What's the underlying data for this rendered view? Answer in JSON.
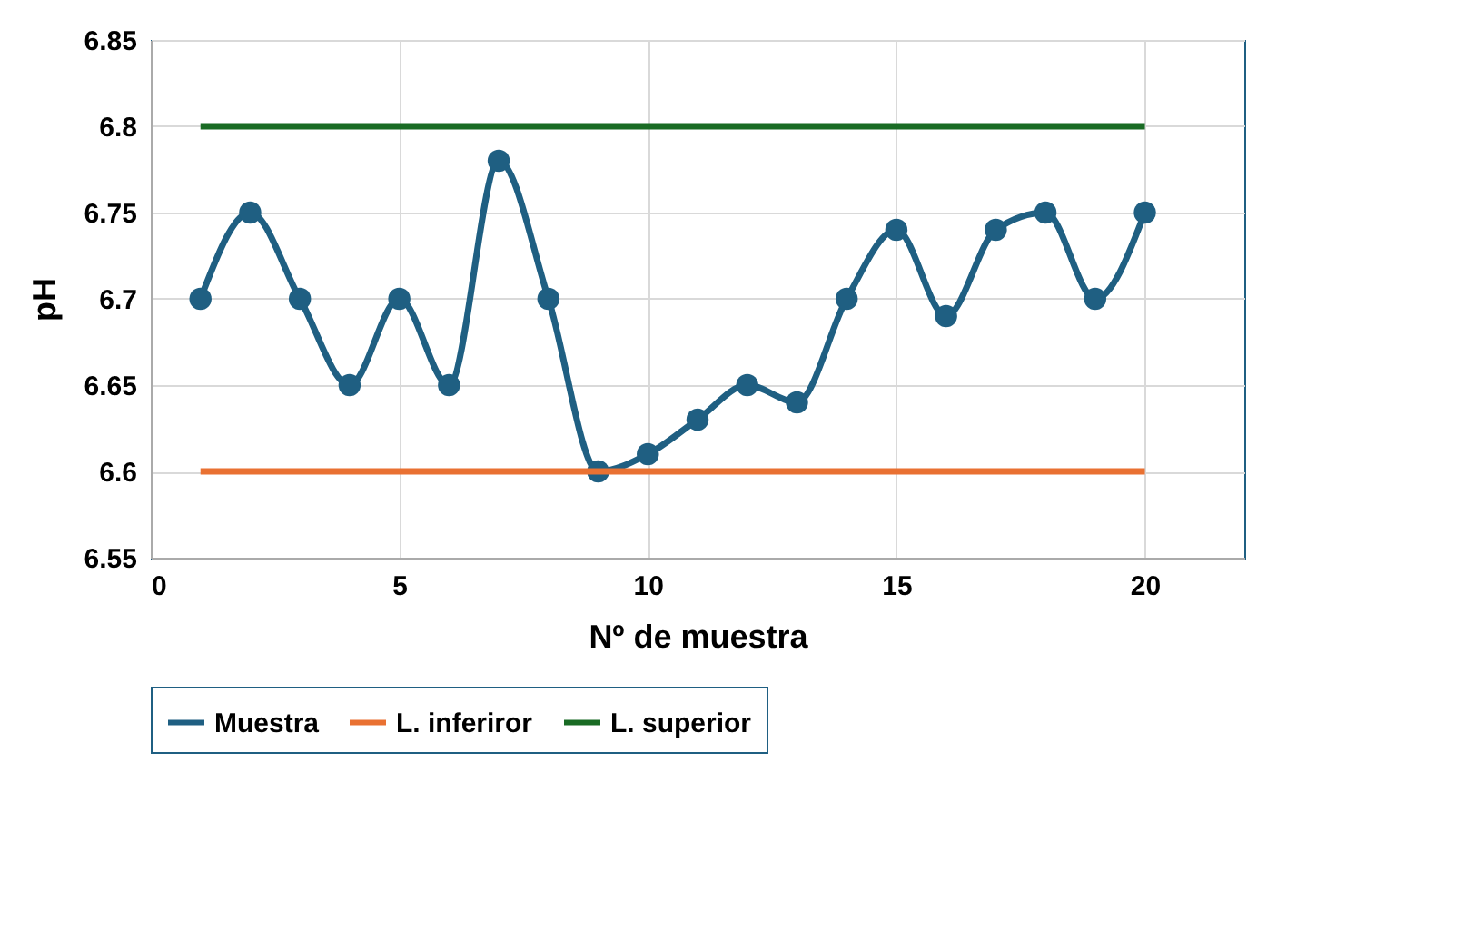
{
  "chart_data": {
    "type": "line",
    "xlabel": "Nº de muestra",
    "ylabel": "pH",
    "x": [
      1,
      2,
      3,
      4,
      5,
      6,
      7,
      8,
      9,
      10,
      11,
      12,
      13,
      14,
      15,
      16,
      17,
      18,
      19,
      20
    ],
    "series": [
      {
        "name": "Muestra",
        "color": "#1f5f82",
        "marker": "circle",
        "values": [
          6.7,
          6.75,
          6.7,
          6.65,
          6.7,
          6.65,
          6.78,
          6.7,
          6.6,
          6.61,
          6.63,
          6.65,
          6.64,
          6.7,
          6.74,
          6.69,
          6.74,
          6.75,
          6.7,
          6.75
        ]
      },
      {
        "name": "L. inferiror",
        "color": "#e97132",
        "marker": "none",
        "values": [
          6.6,
          6.6,
          6.6,
          6.6,
          6.6,
          6.6,
          6.6,
          6.6,
          6.6,
          6.6,
          6.6,
          6.6,
          6.6,
          6.6,
          6.6,
          6.6,
          6.6,
          6.6,
          6.6,
          6.6
        ]
      },
      {
        "name": "L. superior",
        "color": "#196b24",
        "marker": "none",
        "values": [
          6.8,
          6.8,
          6.8,
          6.8,
          6.8,
          6.8,
          6.8,
          6.8,
          6.8,
          6.8,
          6.8,
          6.8,
          6.8,
          6.8,
          6.8,
          6.8,
          6.8,
          6.8,
          6.8,
          6.8
        ]
      }
    ],
    "xlim": [
      0,
      22
    ],
    "xticks": [
      0,
      5,
      10,
      15,
      20
    ],
    "ylim": [
      6.55,
      6.85
    ],
    "yticks": [
      6.55,
      6.6,
      6.65,
      6.7,
      6.75,
      6.8,
      6.85
    ],
    "grid": true,
    "legend": "bottom",
    "line_style": "solid"
  }
}
